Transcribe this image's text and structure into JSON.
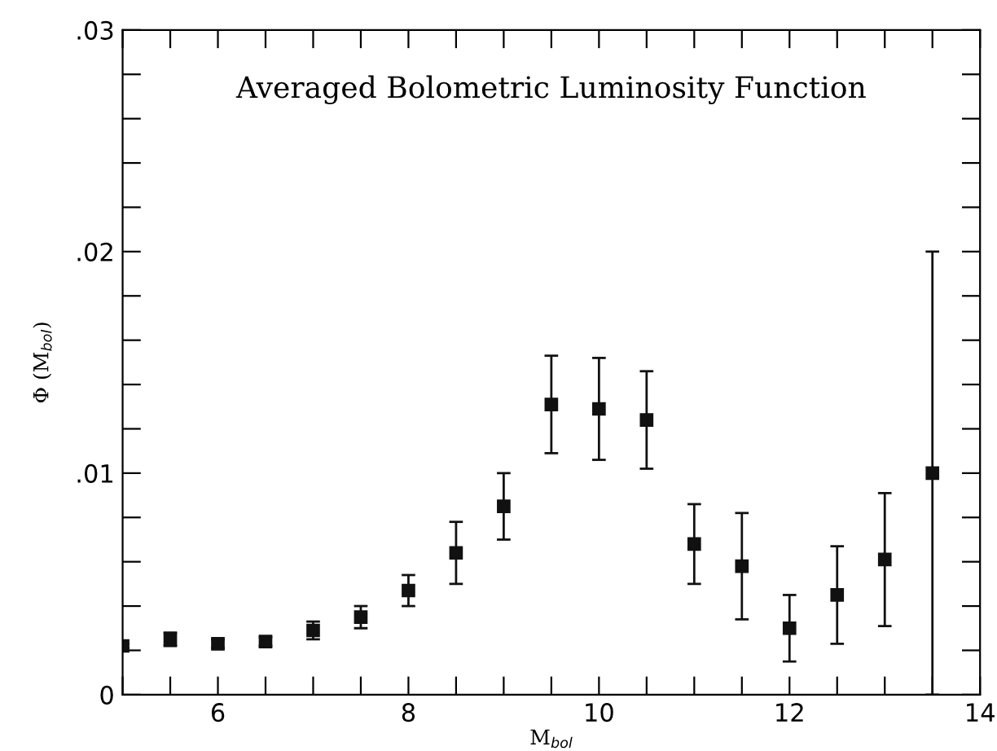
{
  "chart_data": {
    "type": "scatter",
    "title": "Averaged Bolometric Luminosity Function",
    "xlabel": "M$_{bol}$",
    "ylabel": "Φ (M$_{bol}$)",
    "x": [
      5,
      5.5,
      6,
      6.5,
      7,
      7.5,
      8,
      8.5,
      9,
      9.5,
      10,
      10.5,
      11,
      11.5,
      12,
      12.5,
      13,
      13.5
    ],
    "values": [
      0.0022,
      0.0025,
      0.0023,
      0.0024,
      0.0029,
      0.0035,
      0.0047,
      0.0064,
      0.0085,
      0.0131,
      0.0129,
      0.0124,
      0.0068,
      0.0058,
      0.003,
      0.0045,
      0.0061,
      0.01
    ],
    "errors": [
      0.0001,
      0.0003,
      0.0002,
      0.0002,
      0.0004,
      0.0005,
      0.0007,
      0.0014,
      0.0015,
      0.0022,
      0.0023,
      0.0022,
      0.0018,
      0.0024,
      0.0015,
      0.0022,
      0.003,
      0.01
    ],
    "color": "#111111",
    "marker": "square",
    "xlim": [
      5,
      14
    ],
    "ylim": [
      0,
      0.03
    ],
    "xticks": [
      {
        "value": 5,
        "label": null
      },
      {
        "value": 5.5,
        "label": null
      },
      6,
      {
        "value": 6.5,
        "label": null
      },
      {
        "value": 7,
        "label": null
      },
      {
        "value": 7.5,
        "label": null
      },
      8,
      {
        "value": 8.5,
        "label": null
      },
      {
        "value": 9,
        "label": null
      },
      {
        "value": 9.5,
        "label": null
      },
      10,
      {
        "value": 10.5,
        "label": null
      },
      {
        "value": 11,
        "label": null
      },
      {
        "value": 11.5,
        "label": null
      },
      12,
      {
        "value": 12.5,
        "label": null
      },
      {
        "value": 13,
        "label": null
      },
      {
        "value": 13.5,
        "label": null
      },
      14
    ],
    "yticks": [
      0,
      {
        "value": 0.002,
        "label": null
      },
      {
        "value": 0.004,
        "label": null
      },
      {
        "value": 0.006,
        "label": null
      },
      {
        "value": 0.008,
        "label": null
      },
      {
        "value": 0.01,
        "label": ".01"
      },
      {
        "value": 0.012,
        "label": null
      },
      {
        "value": 0.014,
        "label": null
      },
      {
        "value": 0.016,
        "label": null
      },
      {
        "value": 0.018,
        "label": null
      },
      {
        "value": 0.02,
        "label": ".02"
      },
      {
        "value": 0.022,
        "label": null
      },
      {
        "value": 0.024,
        "label": null
      },
      {
        "value": 0.026,
        "label": null
      },
      {
        "value": 0.028,
        "label": null
      },
      {
        "value": 0.03,
        "label": ".03"
      }
    ],
    "grid": false
  }
}
